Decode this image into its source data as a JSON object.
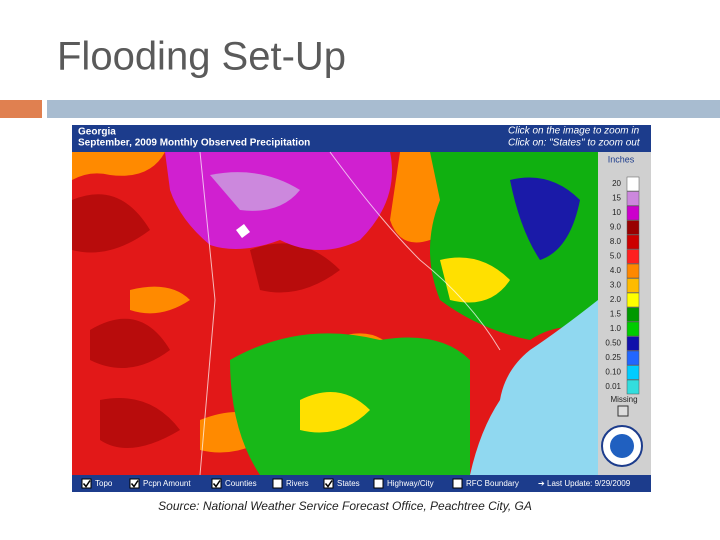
{
  "header": {
    "title": "Flooding Set-Up"
  },
  "map": {
    "title": "Georgia",
    "subtitle": "September, 2009 Monthly Observed Precipitation",
    "hint_zoom_in": "Click on the image to zoom in",
    "hint_zoom_out": "Click on: \"States\" to zoom out",
    "legend": {
      "title": "Inches",
      "items": [
        {
          "label": "20",
          "color": "#ffffff"
        },
        {
          "label": "15",
          "color": "#cc88dd"
        },
        {
          "label": "10",
          "color": "#cc00cc"
        },
        {
          "label": "9.0",
          "color": "#990000"
        },
        {
          "label": "8.0",
          "color": "#cc0000"
        },
        {
          "label": "5.0",
          "color": "#ff2020"
        },
        {
          "label": "4.0",
          "color": "#ff8800"
        },
        {
          "label": "3.0",
          "color": "#ffbb00"
        },
        {
          "label": "2.0",
          "color": "#ffff00"
        },
        {
          "label": "1.5",
          "color": "#009900"
        },
        {
          "label": "1.0",
          "color": "#00cc00"
        },
        {
          "label": "0.50",
          "color": "#1010aa"
        },
        {
          "label": "0.25",
          "color": "#2266ff"
        },
        {
          "label": "0.10",
          "color": "#00ccff"
        },
        {
          "label": "0.01",
          "color": "#33dddd"
        }
      ],
      "missing": "Missing"
    },
    "toolbar": [
      {
        "label": "Topo",
        "checked": true
      },
      {
        "label": "Pcpn Amount",
        "checked": true
      },
      {
        "label": "Counties",
        "checked": true
      },
      {
        "label": "Rivers",
        "checked": false
      },
      {
        "label": "States",
        "checked": true
      },
      {
        "label": "Highway/City",
        "checked": false
      },
      {
        "label": "RFC Boundary",
        "checked": false
      }
    ],
    "last_update": "Last Update: 9/29/2009"
  },
  "source": "Source: National Weather Service Forecast Office, Peachtree City, GA"
}
